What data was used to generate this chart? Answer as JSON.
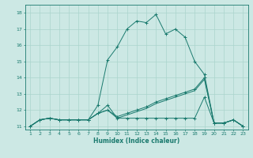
{
  "xlabel": "Humidex (Indice chaleur)",
  "background_color": "#cce8e4",
  "line_color": "#1a7a6e",
  "grid_color": "#aad4cc",
  "xlim": [
    0.5,
    23.5
  ],
  "ylim": [
    10.8,
    18.5
  ],
  "xticks": [
    1,
    2,
    3,
    4,
    5,
    6,
    7,
    8,
    9,
    10,
    11,
    12,
    13,
    14,
    15,
    16,
    17,
    18,
    19,
    20,
    21,
    22,
    23
  ],
  "yticks": [
    11,
    12,
    13,
    14,
    15,
    16,
    17,
    18
  ],
  "series": [
    {
      "x": [
        1,
        2,
        3,
        4,
        5,
        6,
        7,
        8,
        9,
        10,
        11,
        12,
        13,
        14,
        15,
        16,
        17,
        18,
        19,
        20,
        21,
        22,
        23
      ],
      "y": [
        11.0,
        11.4,
        11.5,
        11.4,
        11.4,
        11.4,
        11.4,
        12.3,
        15.1,
        15.9,
        17.0,
        17.5,
        17.4,
        17.9,
        16.7,
        17.0,
        16.5,
        15.0,
        14.2,
        11.2,
        11.2,
        11.4,
        11.0
      ],
      "marker": "+"
    },
    {
      "x": [
        1,
        2,
        3,
        4,
        5,
        6,
        7,
        8,
        9,
        10,
        11,
        12,
        13,
        14,
        15,
        16,
        17,
        18,
        19,
        20,
        21,
        22,
        23
      ],
      "y": [
        11.0,
        11.4,
        11.5,
        11.4,
        11.4,
        11.4,
        11.4,
        11.8,
        12.3,
        11.5,
        11.5,
        11.5,
        11.5,
        11.5,
        11.5,
        11.5,
        11.5,
        11.5,
        12.8,
        11.2,
        11.2,
        11.4,
        11.0
      ],
      "marker": "+"
    },
    {
      "x": [
        1,
        2,
        3,
        4,
        5,
        6,
        7,
        8,
        9,
        10,
        11,
        12,
        13,
        14,
        15,
        16,
        17,
        18,
        19,
        20,
        21,
        22,
        23
      ],
      "y": [
        11.0,
        11.4,
        11.5,
        11.4,
        11.4,
        11.4,
        11.4,
        11.8,
        12.0,
        11.6,
        11.8,
        12.0,
        12.2,
        12.5,
        12.7,
        12.9,
        13.1,
        13.3,
        14.0,
        11.2,
        11.2,
        11.4,
        11.0
      ],
      "marker": "+"
    },
    {
      "x": [
        1,
        2,
        3,
        4,
        5,
        6,
        7,
        8,
        9,
        10,
        11,
        12,
        13,
        14,
        15,
        16,
        17,
        18,
        19,
        20,
        21,
        22,
        23
      ],
      "y": [
        11.0,
        11.4,
        11.5,
        11.4,
        11.4,
        11.4,
        11.4,
        11.8,
        12.0,
        11.5,
        11.7,
        11.9,
        12.1,
        12.4,
        12.6,
        12.8,
        13.0,
        13.2,
        13.9,
        11.2,
        11.2,
        11.4,
        11.0
      ],
      "marker": null
    }
  ]
}
